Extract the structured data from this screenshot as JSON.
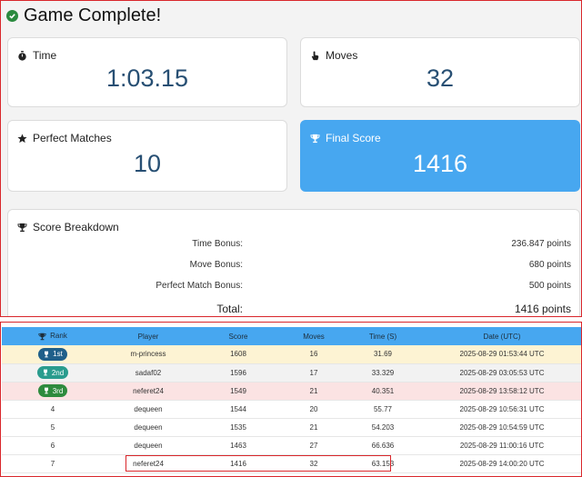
{
  "header": {
    "title": "Game Complete!"
  },
  "stats": {
    "time": {
      "label": "Time",
      "value": "1:03.15"
    },
    "moves": {
      "label": "Moves",
      "value": "32"
    },
    "perfect": {
      "label": "Perfect Matches",
      "value": "10"
    },
    "final": {
      "label": "Final Score",
      "value": "1416"
    }
  },
  "breakdown": {
    "title": "Score Breakdown",
    "rows": [
      {
        "label": "Time Bonus:",
        "value": "236.847 points"
      },
      {
        "label": "Move Bonus:",
        "value": "680 points"
      },
      {
        "label": "Perfect Match Bonus:",
        "value": "500 points"
      }
    ],
    "total": {
      "label": "Total:",
      "value": "1416 points"
    }
  },
  "leaderboard": {
    "headers": [
      "Rank",
      "Player",
      "Score",
      "Moves",
      "Time (S)",
      "Date (UTC)"
    ],
    "rows": [
      {
        "rank": "1st",
        "player": "m-princess",
        "score": "1608",
        "moves": "16",
        "time": "31.69",
        "date": "2025-08-29 01:53:44 UTC"
      },
      {
        "rank": "2nd",
        "player": "sadaf02",
        "score": "1596",
        "moves": "17",
        "time": "33.329",
        "date": "2025-08-29 03:05:53 UTC"
      },
      {
        "rank": "3rd",
        "player": "neferet24",
        "score": "1549",
        "moves": "21",
        "time": "40.351",
        "date": "2025-08-29 13:58:12 UTC"
      },
      {
        "rank": "4",
        "player": "dequeen",
        "score": "1544",
        "moves": "20",
        "time": "55.77",
        "date": "2025-08-29 10:56:31 UTC"
      },
      {
        "rank": "5",
        "player": "dequeen",
        "score": "1535",
        "moves": "21",
        "time": "54.203",
        "date": "2025-08-29 10:54:59 UTC"
      },
      {
        "rank": "6",
        "player": "dequeen",
        "score": "1463",
        "moves": "27",
        "time": "66.636",
        "date": "2025-08-29 11:00:16 UTC"
      },
      {
        "rank": "7",
        "player": "neferet24",
        "score": "1416",
        "moves": "32",
        "time": "63.153",
        "date": "2025-08-29 14:00:20 UTC"
      }
    ]
  },
  "colors": {
    "accent": "#47a7f0",
    "score_text": "#274f73",
    "annotation": "#d9262b",
    "gold_row": "#fdf3d3",
    "bronze_row": "#fbe3e3"
  },
  "icons": {
    "title": "check-circle-icon",
    "time": "stopwatch-icon",
    "moves": "pointer-hand-icon",
    "perfect": "star-icon",
    "final": "trophy-icon",
    "breakdown": "trophy-icon"
  }
}
